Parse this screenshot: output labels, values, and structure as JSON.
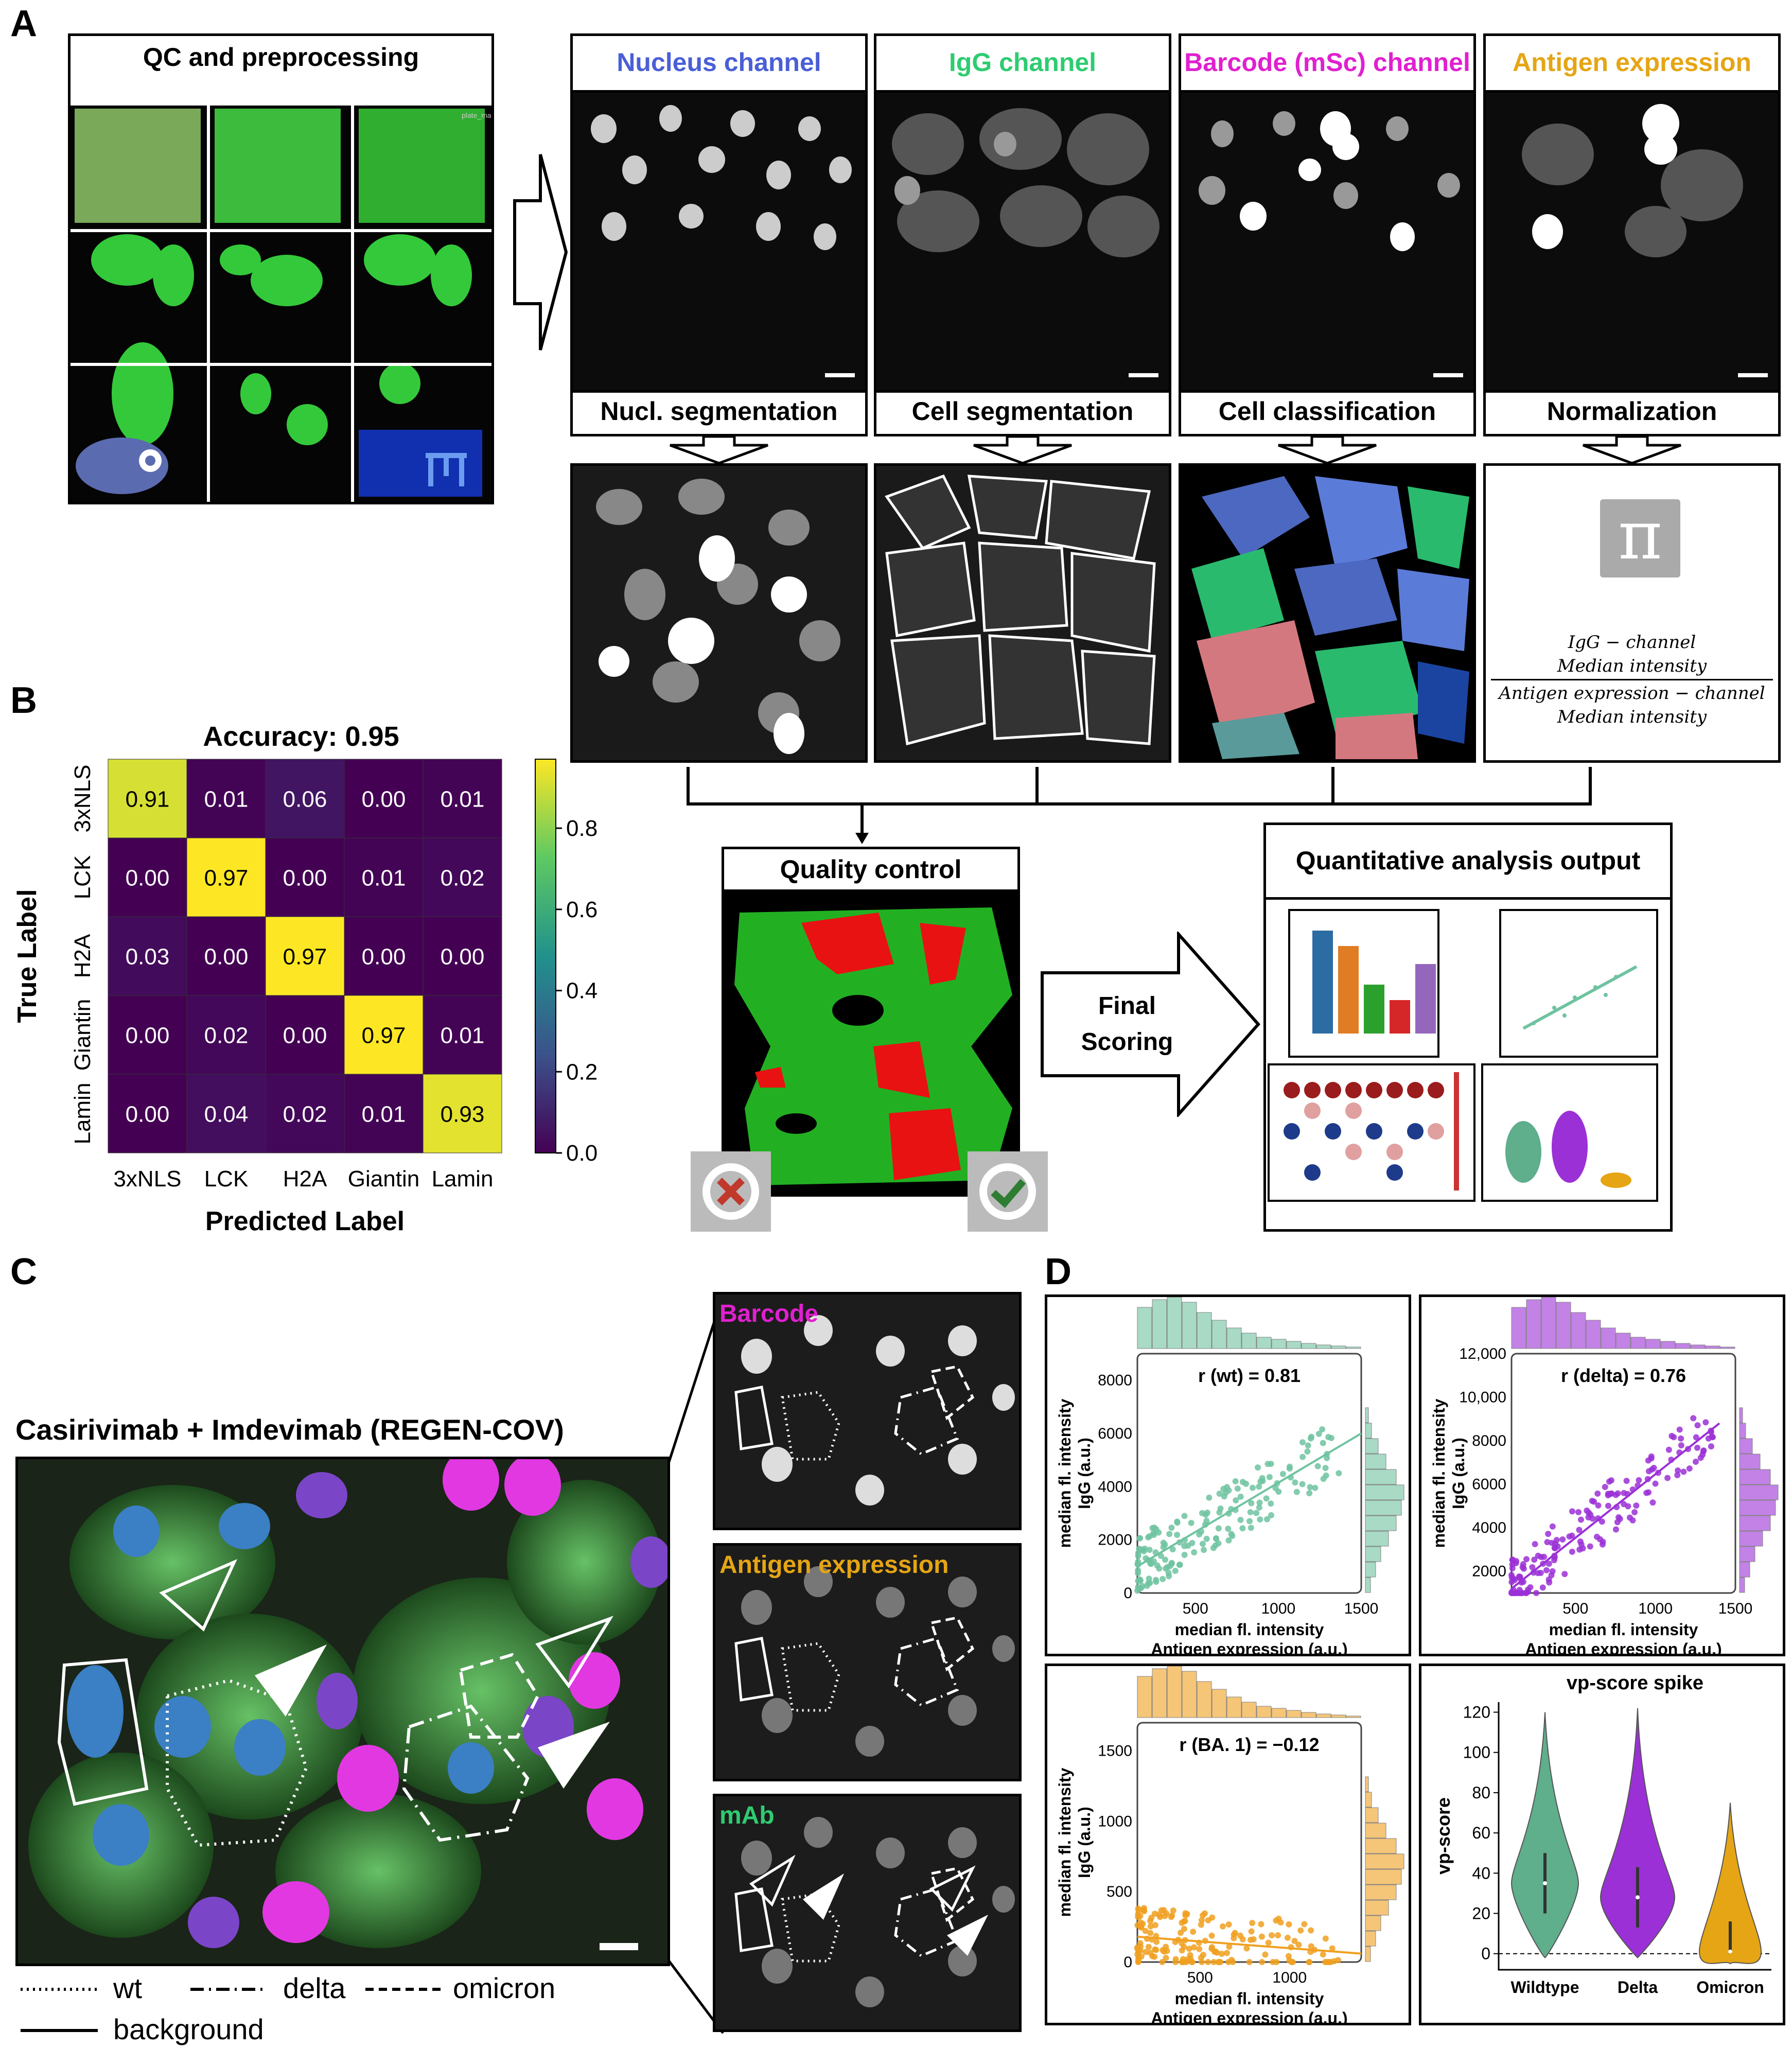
{
  "panels": {
    "a": "A",
    "b": "B",
    "c": "C",
    "d": "D"
  },
  "A": {
    "qc_title": "QC and preprocessing",
    "channels": [
      {
        "label": "Nucleus channel",
        "color": "#4a5fd6"
      },
      {
        "label": "IgG channel",
        "color": "#2ecc71"
      },
      {
        "label": "Barcode (mSc) channel",
        "color": "#e020d0"
      },
      {
        "label": "Antigen expression",
        "color": "#e5a514"
      }
    ],
    "steps": [
      "Nucl. segmentation",
      "Cell segmentation",
      "Cell classification",
      "Normalization"
    ],
    "formula": {
      "num1": "IgG − channel",
      "num2": "Median intensity",
      "den1": "Antigen  expression − channel",
      "den2": "Median intensity",
      "pi": "π"
    },
    "qc_label": "Quality control",
    "final_scoring": [
      "Final",
      "Scoring"
    ],
    "output_title": "Quantitative analysis output",
    "plate_mark": "plate_mark"
  },
  "B": {
    "chart_data": {
      "type": "heatmap",
      "title": "Accuracy: 0.95",
      "xlabel": "Predicted Label",
      "ylabel": "True Label",
      "categories": [
        "3xNLS",
        "LCK",
        "H2A",
        "Giantin",
        "Lamin"
      ],
      "matrix": [
        [
          0.91,
          0.01,
          0.06,
          0.0,
          0.01
        ],
        [
          0.0,
          0.97,
          0.0,
          0.01,
          0.02
        ],
        [
          0.03,
          0.0,
          0.97,
          0.0,
          0.0
        ],
        [
          0.0,
          0.02,
          0.0,
          0.97,
          0.01
        ],
        [
          0.0,
          0.04,
          0.02,
          0.01,
          0.93
        ]
      ],
      "colorbar_ticks": [
        "0.8",
        "0.6",
        "0.4",
        "0.2",
        "0.0"
      ],
      "colormap": "viridis"
    }
  },
  "C": {
    "title": "Casirivimab + Imdevimab (REGEN-COV)",
    "insets": [
      {
        "label": "Barcode",
        "color": "#e020d0"
      },
      {
        "label": "Antigen expression",
        "color": "#e5a514"
      },
      {
        "label": "mAb",
        "color": "#2ecc71"
      }
    ],
    "legend": {
      "wt": "wt",
      "delta": "delta",
      "omicron": "omicron",
      "background": "background"
    }
  },
  "D": {
    "chart_data": [
      {
        "type": "scatter",
        "annotation": "r (wt) = 0.81",
        "color": "#6fc3a0",
        "ylabel": [
          "median fl. intensity",
          "IgG (a.u.)"
        ],
        "xlabel": [
          "median fl. intensity",
          "Antigen expression (a.u.)"
        ],
        "xticks": [
          "500",
          "1000",
          "1500"
        ],
        "yticks": [
          "0",
          "2000",
          "4000",
          "6000",
          "8000"
        ],
        "xlim": [
          150,
          1500
        ],
        "ylim": [
          0,
          9000
        ],
        "regression": [
          [
            150,
            1500
          ],
          [
            1000,
            6000
          ]
        ]
      },
      {
        "type": "scatter",
        "annotation": "r (delta) = 0.76",
        "color": "#9b30d6",
        "ylabel": [
          "median fl. intensity",
          "IgG (a.u.)"
        ],
        "xlabel": [
          "median fl. intensity",
          "Antigen expression (a.u.)"
        ],
        "xticks": [
          "500",
          "1000",
          "1500"
        ],
        "yticks": [
          "2000",
          "4000",
          "6000",
          "8000",
          "10,000",
          "12,000"
        ],
        "xlim": [
          100,
          1500
        ],
        "ylim": [
          1000,
          12000
        ],
        "regression": [
          [
            100,
            1400
          ],
          [
            1200,
            8800
          ]
        ]
      },
      {
        "type": "scatter",
        "annotation": "r (BA. 1) = −0.12",
        "color": "#f0a020",
        "ylabel": [
          "median fl. intensity",
          "IgG (a.u.)"
        ],
        "xlabel": [
          "median fl. intensity",
          "Antigen expression (a.u.)"
        ],
        "xticks": [
          "500",
          "1000"
        ],
        "yticks": [
          "0",
          "500",
          "1000",
          "1500"
        ],
        "xlim": [
          150,
          1400
        ],
        "ylim": [
          0,
          1700
        ],
        "regression": [
          [
            150,
            1400
          ],
          [
            180,
            60
          ]
        ]
      },
      {
        "type": "violin",
        "title": "vp-score spike",
        "ylabel": "vp-score",
        "categories": [
          "Wildtype",
          "Delta",
          "Omicron"
        ],
        "yticks": [
          "0",
          "20",
          "40",
          "60",
          "80",
          "100",
          "120"
        ],
        "ylim": [
          -8,
          125
        ],
        "medians": [
          35,
          28,
          1
        ],
        "colors": [
          "#5fae8c",
          "#9b30d6",
          "#e5a514"
        ]
      }
    ]
  }
}
